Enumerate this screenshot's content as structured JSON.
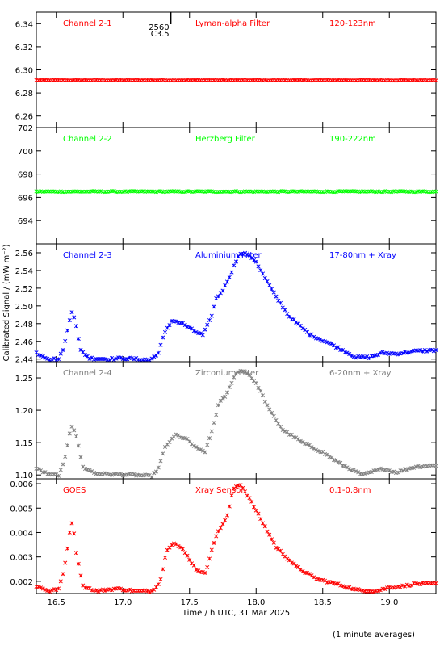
{
  "chart_data": {
    "type": "scatter",
    "x_axis": {
      "label": "Time / h UTC, 31 Mar 2025",
      "range": [
        16.35,
        19.35
      ],
      "ticks": [
        16.5,
        17.0,
        17.5,
        18.0,
        18.5,
        19.0
      ],
      "tick_labels": [
        "16.5",
        "17.0",
        "17.5",
        "18.0",
        "18.5",
        "19.0"
      ]
    },
    "y_label": "Calibrated Signal / (mW m⁻²)",
    "footnote": "(1 minute averages)",
    "marker_annotation": {
      "x": 17.36,
      "lines": [
        "2560",
        "C3.5"
      ]
    },
    "panels": [
      {
        "channel": "Channel 2-1",
        "filter": "Lyman-alpha Filter",
        "band": "120-123nm",
        "color": "#ff0000",
        "ylim": [
          6.25,
          6.35
        ],
        "yticks": [
          6.26,
          6.28,
          6.3,
          6.32,
          6.34
        ],
        "ytick_labels": [
          "6.26",
          "6.28",
          "6.30",
          "6.32",
          "6.34"
        ],
        "key_points": [
          [
            16.35,
            6.291
          ],
          [
            19.35,
            6.291
          ]
        ],
        "noise": 0.0003
      },
      {
        "channel": "Channel 2-2",
        "filter": "Herzberg Filter",
        "band": "190-222nm",
        "color": "#00ff00",
        "ylim": [
          692,
          702
        ],
        "yticks": [
          694,
          696,
          698,
          700,
          702
        ],
        "ytick_labels": [
          "694",
          "696",
          "698",
          "700",
          "702"
        ],
        "key_points": [
          [
            16.35,
            696.5
          ],
          [
            19.35,
            696.5
          ]
        ],
        "noise": 0.04
      },
      {
        "channel": "Channel 2-3",
        "filter": "Aluminium Filter",
        "band": "17-80nm + Xray",
        "color": "#0000ff",
        "ylim": [
          2.437,
          2.57
        ],
        "yticks": [
          2.44,
          2.46,
          2.48,
          2.5,
          2.52,
          2.54,
          2.56
        ],
        "ytick_labels": [
          "2.44",
          "2.46",
          "2.48",
          "2.50",
          "2.52",
          "2.54",
          "2.56"
        ],
        "key_points": [
          [
            16.35,
            2.447
          ],
          [
            16.45,
            2.44
          ],
          [
            16.52,
            2.44
          ],
          [
            16.56,
            2.455
          ],
          [
            16.6,
            2.484
          ],
          [
            16.62,
            2.496
          ],
          [
            16.65,
            2.478
          ],
          [
            16.68,
            2.45
          ],
          [
            16.75,
            2.441
          ],
          [
            16.9,
            2.44
          ],
          [
            17.0,
            2.441
          ],
          [
            17.1,
            2.44
          ],
          [
            17.2,
            2.439
          ],
          [
            17.26,
            2.445
          ],
          [
            17.31,
            2.468
          ],
          [
            17.37,
            2.484
          ],
          [
            17.45,
            2.48
          ],
          [
            17.53,
            2.472
          ],
          [
            17.6,
            2.467
          ],
          [
            17.66,
            2.486
          ],
          [
            17.7,
            2.508
          ],
          [
            17.76,
            2.52
          ],
          [
            17.82,
            2.54
          ],
          [
            17.87,
            2.558
          ],
          [
            17.93,
            2.559
          ],
          [
            18.0,
            2.55
          ],
          [
            18.06,
            2.533
          ],
          [
            18.15,
            2.51
          ],
          [
            18.25,
            2.488
          ],
          [
            18.4,
            2.468
          ],
          [
            18.55,
            2.458
          ],
          [
            18.65,
            2.45
          ],
          [
            18.75,
            2.442
          ],
          [
            18.85,
            2.442
          ],
          [
            18.95,
            2.447
          ],
          [
            19.05,
            2.446
          ],
          [
            19.2,
            2.449
          ],
          [
            19.35,
            2.45
          ]
        ],
        "noise": 0.0012
      },
      {
        "channel": "Channel 2-4",
        "filter": "Zirconium Filter",
        "band": "6-20nm + Xray",
        "color": "#808080",
        "ylim": [
          1.094,
          1.275
        ],
        "yticks": [
          1.1,
          1.15,
          1.2,
          1.25
        ],
        "ytick_labels": [
          "1.10",
          "1.15",
          "1.20",
          "1.25"
        ],
        "key_points": [
          [
            16.35,
            1.11
          ],
          [
            16.45,
            1.1
          ],
          [
            16.52,
            1.1
          ],
          [
            16.56,
            1.12
          ],
          [
            16.6,
            1.165
          ],
          [
            16.62,
            1.178
          ],
          [
            16.65,
            1.16
          ],
          [
            16.7,
            1.112
          ],
          [
            16.8,
            1.102
          ],
          [
            16.95,
            1.101
          ],
          [
            17.1,
            1.1
          ],
          [
            17.22,
            1.098
          ],
          [
            17.27,
            1.112
          ],
          [
            17.32,
            1.145
          ],
          [
            17.4,
            1.162
          ],
          [
            17.48,
            1.155
          ],
          [
            17.56,
            1.14
          ],
          [
            17.62,
            1.136
          ],
          [
            17.67,
            1.17
          ],
          [
            17.72,
            1.21
          ],
          [
            17.78,
            1.225
          ],
          [
            17.84,
            1.255
          ],
          [
            17.89,
            1.262
          ],
          [
            17.95,
            1.255
          ],
          [
            18.02,
            1.235
          ],
          [
            18.1,
            1.2
          ],
          [
            18.2,
            1.17
          ],
          [
            18.35,
            1.15
          ],
          [
            18.5,
            1.135
          ],
          [
            18.65,
            1.115
          ],
          [
            18.8,
            1.1
          ],
          [
            18.95,
            1.11
          ],
          [
            19.05,
            1.104
          ],
          [
            19.2,
            1.113
          ],
          [
            19.35,
            1.115
          ]
        ],
        "noise": 0.0015
      },
      {
        "channel": "GOES",
        "filter": "Xray Sensor",
        "band": "0.1-0.8nm",
        "color": "#ff0000",
        "ylim": [
          0.0015,
          0.0062
        ],
        "yticks": [
          0.002,
          0.003,
          0.004,
          0.005,
          0.006
        ],
        "ytick_labels": [
          "0.002",
          "0.003",
          "0.004",
          "0.005",
          "0.006"
        ],
        "key_points": [
          [
            16.35,
            0.0018
          ],
          [
            16.45,
            0.0016
          ],
          [
            16.52,
            0.0017
          ],
          [
            16.56,
            0.0025
          ],
          [
            16.6,
            0.004
          ],
          [
            16.62,
            0.0045
          ],
          [
            16.65,
            0.0032
          ],
          [
            16.7,
            0.0018
          ],
          [
            16.8,
            0.0016
          ],
          [
            16.95,
            0.0017
          ],
          [
            17.1,
            0.0016
          ],
          [
            17.22,
            0.0016
          ],
          [
            17.28,
            0.002
          ],
          [
            17.33,
            0.0033
          ],
          [
            17.38,
            0.0036
          ],
          [
            17.45,
            0.0033
          ],
          [
            17.55,
            0.0025
          ],
          [
            17.62,
            0.0023
          ],
          [
            17.67,
            0.0034
          ],
          [
            17.72,
            0.0041
          ],
          [
            17.78,
            0.0046
          ],
          [
            17.83,
            0.0058
          ],
          [
            17.88,
            0.006
          ],
          [
            17.95,
            0.0054
          ],
          [
            18.05,
            0.0044
          ],
          [
            18.15,
            0.0034
          ],
          [
            18.3,
            0.0026
          ],
          [
            18.45,
            0.0021
          ],
          [
            18.6,
            0.0019
          ],
          [
            18.75,
            0.00165
          ],
          [
            18.9,
            0.0016
          ],
          [
            19.0,
            0.00175
          ],
          [
            19.1,
            0.0018
          ],
          [
            19.2,
            0.0019
          ],
          [
            19.35,
            0.0019
          ]
        ],
        "noise": 4e-05
      }
    ]
  }
}
